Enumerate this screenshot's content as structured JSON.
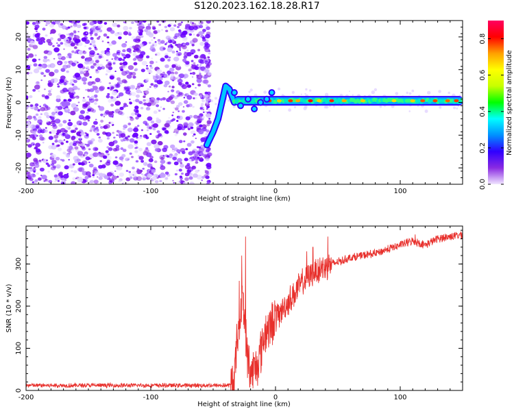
{
  "title": "S120.2023.162.18.28.R17",
  "chart_data": [
    {
      "type": "heatmap",
      "name": "spectrogram",
      "xlabel": "Height of straight line (km)",
      "ylabel": "Frequency (Hz)",
      "xlim": [
        -200,
        150
      ],
      "ylim": [
        -25,
        25
      ],
      "xticks": [
        -200,
        -100,
        0,
        100
      ],
      "yticks": [
        -20,
        -10,
        0,
        10,
        20
      ],
      "colorbar": {
        "label": "Normalized spectral amplitude",
        "range": [
          0,
          0.9
        ],
        "ticks": [
          0.0,
          0.2,
          0.4,
          0.6,
          0.8
        ],
        "colors": [
          "#f0e6ff",
          "#8a2be2",
          "#3000ff",
          "#0090ff",
          "#00ffff",
          "#00ff00",
          "#c8ff00",
          "#ffff00",
          "#ffa000",
          "#ff0000",
          "#ff0060"
        ]
      },
      "noise_region_km": [
        -200,
        -55
      ],
      "ramp": [
        {
          "x": -55,
          "y": -13
        },
        {
          "x": -50,
          "y": -9
        },
        {
          "x": -46,
          "y": -5
        },
        {
          "x": -43,
          "y": 0
        },
        {
          "x": -40,
          "y": 5
        },
        {
          "x": -37,
          "y": 4
        },
        {
          "x": -33,
          "y": 0
        }
      ],
      "line": {
        "x_start": -33,
        "x_end": 150,
        "frequency_hz": 0.5
      }
    },
    {
      "type": "line",
      "name": "snr",
      "xlabel": "Height of straight line (km)",
      "ylabel": "SNR (10 * v/v)",
      "xlim": [
        -200,
        150
      ],
      "ylim": [
        0,
        390
      ],
      "xticks": [
        -200,
        -100,
        0,
        100
      ],
      "yticks": [
        0,
        100,
        200,
        300
      ],
      "color": "#e8302c",
      "profile": [
        {
          "x": -200,
          "y": 12
        },
        {
          "x": -36,
          "y": 12
        },
        {
          "x": -33,
          "y": 30
        },
        {
          "x": -30,
          "y": 150
        },
        {
          "x": -26,
          "y": 220
        },
        {
          "x": -23,
          "y": 90
        },
        {
          "x": -20,
          "y": 40
        },
        {
          "x": -15,
          "y": 60
        },
        {
          "x": -8,
          "y": 140
        },
        {
          "x": 0,
          "y": 170
        },
        {
          "x": 10,
          "y": 210
        },
        {
          "x": 20,
          "y": 250
        },
        {
          "x": 30,
          "y": 280
        },
        {
          "x": 40,
          "y": 295
        },
        {
          "x": 60,
          "y": 315
        },
        {
          "x": 80,
          "y": 325
        },
        {
          "x": 100,
          "y": 345
        },
        {
          "x": 110,
          "y": 355
        },
        {
          "x": 120,
          "y": 345
        },
        {
          "x": 130,
          "y": 360
        },
        {
          "x": 150,
          "y": 370
        }
      ],
      "spikes": [
        {
          "x": -24,
          "y": 365
        },
        {
          "x": -27,
          "y": 320
        },
        {
          "x": -29,
          "y": 260
        },
        {
          "x": 25,
          "y": 330
        },
        {
          "x": 30,
          "y": 340
        },
        {
          "x": 42,
          "y": 365
        },
        {
          "x": 112,
          "y": 370
        }
      ]
    }
  ]
}
